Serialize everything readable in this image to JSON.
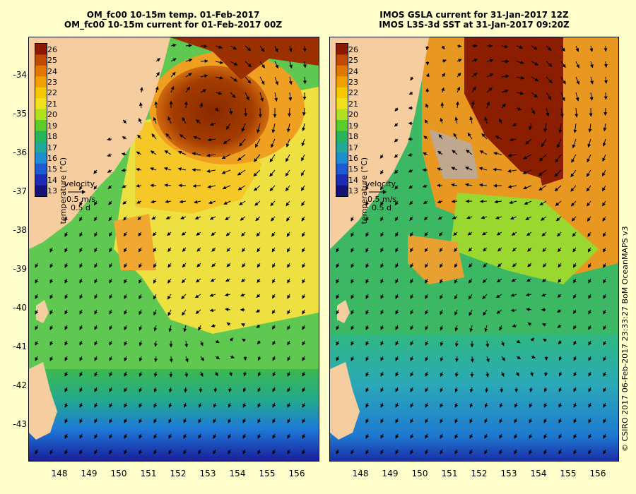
{
  "left_panel": {
    "title_line1": "OM_fc00 10-15m temp. 01-Feb-2017",
    "title_line2": "OM_fc00 10-15m current for 01-Feb-2017 00Z"
  },
  "right_panel": {
    "title_line1": "IMOS GSLA current for 31-Jan-2017 12Z",
    "title_line2": "IMOS L3S-3d SST at 31-Jan-2017 09:20Z"
  },
  "colorbar": {
    "title": "temperature (°C)",
    "labels": [
      "26",
      "25",
      "24",
      "23",
      "22",
      "21",
      "20",
      "19",
      "18",
      "17",
      "16",
      "15",
      "14",
      "13"
    ],
    "colors": [
      "#8b1a00",
      "#c24a00",
      "#e07800",
      "#f0a000",
      "#f5c800",
      "#f0e020",
      "#b0e020",
      "#5ccc28",
      "#28b45a",
      "#20a898",
      "#1e8cd0",
      "#1e5ad2",
      "#1c2ab4",
      "#141478"
    ]
  },
  "velocity_legend": {
    "label": "velocity",
    "speed": "0.5 m/s",
    "duration": "0.5 d"
  },
  "axes": {
    "y_ticks": [
      "-34",
      "-35",
      "-36",
      "-37",
      "-38",
      "-39",
      "-40",
      "-41",
      "-42",
      "-43"
    ],
    "x_ticks": [
      "148",
      "149",
      "150",
      "151",
      "152",
      "153",
      "154",
      "155",
      "156"
    ]
  },
  "land_color": "#f6cd9e",
  "credit": "© CSIRO 2017   06-Feb-2017 23:33:27 BoM OceanMAPS v3"
}
